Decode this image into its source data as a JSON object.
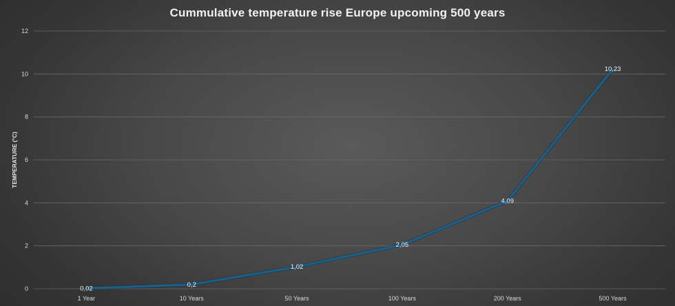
{
  "chart_data": {
    "type": "line",
    "title": "Cummulative temperature rise Europe upcoming 500 years",
    "xlabel": "",
    "ylabel": "TEMPERATURE (°C)",
    "categories": [
      "1 Year",
      "10 Years",
      "50 Years",
      "100 Years",
      "200 Years",
      "500 Years"
    ],
    "series": [
      {
        "values": [
          0.02,
          0.2,
          1.02,
          2.05,
          4.09,
          10.23
        ],
        "data_labels": [
          "0,02",
          "0,2",
          "1,02",
          "2,05",
          "4,09",
          "10,23"
        ],
        "color": "#1f5f86"
      }
    ],
    "ylim": [
      0,
      12
    ],
    "yticks": [
      0,
      2,
      4,
      6,
      8,
      10,
      12
    ],
    "grid": true,
    "legend": "none"
  }
}
